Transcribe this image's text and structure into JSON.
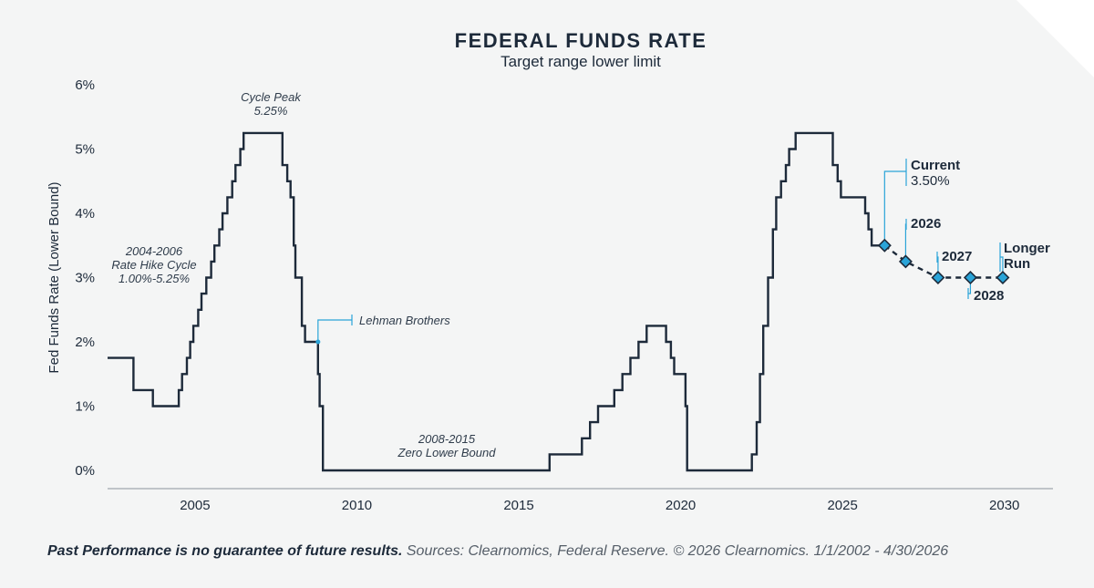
{
  "chart_data": {
    "type": "line",
    "title": "FEDERAL FUNDS RATE",
    "subtitle": "Target range lower limit",
    "ylabel": "Fed Funds Rate (Lower Bound)",
    "xlabel": "",
    "xlim": [
      2002.3,
      2031.5
    ],
    "ylim": [
      0,
      6
    ],
    "x_ticks": [
      2005,
      2010,
      2015,
      2020,
      2025,
      2030
    ],
    "y_ticks": [
      0,
      1,
      2,
      3,
      4,
      5,
      6
    ],
    "y_tick_labels": [
      "0%",
      "1%",
      "2%",
      "3%",
      "4%",
      "5%",
      "6%"
    ],
    "series": [
      {
        "style": "step",
        "color": "#1d2a3a",
        "points": [
          [
            2002.3,
            1.75
          ],
          [
            2003.1,
            1.75
          ],
          [
            2003.1,
            1.25
          ],
          [
            2003.7,
            1.25
          ],
          [
            2003.7,
            1.0
          ],
          [
            2004.5,
            1.0
          ],
          [
            2004.5,
            1.25
          ],
          [
            2004.6,
            1.25
          ],
          [
            2004.6,
            1.5
          ],
          [
            2004.75,
            1.5
          ],
          [
            2004.75,
            1.75
          ],
          [
            2004.85,
            1.75
          ],
          [
            2004.85,
            2.0
          ],
          [
            2004.95,
            2.0
          ],
          [
            2004.95,
            2.25
          ],
          [
            2005.1,
            2.25
          ],
          [
            2005.1,
            2.5
          ],
          [
            2005.2,
            2.5
          ],
          [
            2005.2,
            2.75
          ],
          [
            2005.35,
            2.75
          ],
          [
            2005.35,
            3.0
          ],
          [
            2005.5,
            3.0
          ],
          [
            2005.5,
            3.25
          ],
          [
            2005.6,
            3.25
          ],
          [
            2005.6,
            3.5
          ],
          [
            2005.75,
            3.5
          ],
          [
            2005.75,
            3.75
          ],
          [
            2005.85,
            3.75
          ],
          [
            2005.85,
            4.0
          ],
          [
            2006.0,
            4.0
          ],
          [
            2006.0,
            4.25
          ],
          [
            2006.15,
            4.25
          ],
          [
            2006.15,
            4.5
          ],
          [
            2006.25,
            4.5
          ],
          [
            2006.25,
            4.75
          ],
          [
            2006.4,
            4.75
          ],
          [
            2006.4,
            5.0
          ],
          [
            2006.5,
            5.0
          ],
          [
            2006.5,
            5.25
          ],
          [
            2007.7,
            5.25
          ],
          [
            2007.7,
            4.75
          ],
          [
            2007.85,
            4.75
          ],
          [
            2007.85,
            4.5
          ],
          [
            2007.95,
            4.5
          ],
          [
            2007.95,
            4.25
          ],
          [
            2008.05,
            4.25
          ],
          [
            2008.05,
            3.5
          ],
          [
            2008.1,
            3.5
          ],
          [
            2008.1,
            3.0
          ],
          [
            2008.3,
            3.0
          ],
          [
            2008.3,
            2.25
          ],
          [
            2008.4,
            2.25
          ],
          [
            2008.4,
            2.0
          ],
          [
            2008.8,
            2.0
          ],
          [
            2008.8,
            1.5
          ],
          [
            2008.85,
            1.5
          ],
          [
            2008.85,
            1.0
          ],
          [
            2008.95,
            1.0
          ],
          [
            2008.95,
            0.0
          ],
          [
            2015.95,
            0.0
          ],
          [
            2015.95,
            0.25
          ],
          [
            2016.95,
            0.25
          ],
          [
            2016.95,
            0.5
          ],
          [
            2017.2,
            0.5
          ],
          [
            2017.2,
            0.75
          ],
          [
            2017.45,
            0.75
          ],
          [
            2017.45,
            1.0
          ],
          [
            2017.95,
            1.0
          ],
          [
            2017.95,
            1.25
          ],
          [
            2018.2,
            1.25
          ],
          [
            2018.2,
            1.5
          ],
          [
            2018.45,
            1.5
          ],
          [
            2018.45,
            1.75
          ],
          [
            2018.7,
            1.75
          ],
          [
            2018.7,
            2.0
          ],
          [
            2018.95,
            2.0
          ],
          [
            2018.95,
            2.25
          ],
          [
            2019.55,
            2.25
          ],
          [
            2019.55,
            2.0
          ],
          [
            2019.7,
            2.0
          ],
          [
            2019.7,
            1.75
          ],
          [
            2019.8,
            1.75
          ],
          [
            2019.8,
            1.5
          ],
          [
            2020.15,
            1.5
          ],
          [
            2020.15,
            1.0
          ],
          [
            2020.2,
            1.0
          ],
          [
            2020.2,
            0.0
          ],
          [
            2022.2,
            0.0
          ],
          [
            2022.2,
            0.25
          ],
          [
            2022.35,
            0.25
          ],
          [
            2022.35,
            0.75
          ],
          [
            2022.45,
            0.75
          ],
          [
            2022.45,
            1.5
          ],
          [
            2022.55,
            1.5
          ],
          [
            2022.55,
            2.25
          ],
          [
            2022.7,
            2.25
          ],
          [
            2022.7,
            3.0
          ],
          [
            2022.85,
            3.0
          ],
          [
            2022.85,
            3.75
          ],
          [
            2022.95,
            3.75
          ],
          [
            2022.95,
            4.25
          ],
          [
            2023.1,
            4.25
          ],
          [
            2023.1,
            4.5
          ],
          [
            2023.25,
            4.5
          ],
          [
            2023.25,
            4.75
          ],
          [
            2023.35,
            4.75
          ],
          [
            2023.35,
            5.0
          ],
          [
            2023.55,
            5.0
          ],
          [
            2023.55,
            5.25
          ],
          [
            2024.7,
            5.25
          ],
          [
            2024.7,
            4.75
          ],
          [
            2024.85,
            4.75
          ],
          [
            2024.85,
            4.5
          ],
          [
            2024.95,
            4.5
          ],
          [
            2024.95,
            4.25
          ],
          [
            2025.7,
            4.25
          ],
          [
            2025.7,
            4.0
          ],
          [
            2025.8,
            4.0
          ],
          [
            2025.8,
            3.75
          ],
          [
            2025.9,
            3.75
          ],
          [
            2025.9,
            3.5
          ],
          [
            2026.3,
            3.5
          ]
        ]
      },
      {
        "style": "dashed",
        "color": "#1d2a3a",
        "points": [
          [
            2026.3,
            3.5
          ],
          [
            2026.95,
            3.25
          ],
          [
            2027.95,
            3.0
          ],
          [
            2028.95,
            3.0
          ],
          [
            2029.95,
            3.0
          ]
        ]
      }
    ],
    "markers": [
      {
        "label": "Current",
        "value_label": "3.50%",
        "x": 2026.3,
        "y": 3.5
      },
      {
        "label": "2026",
        "x": 2026.95,
        "y": 3.25
      },
      {
        "label": "2027",
        "x": 2027.95,
        "y": 3.0
      },
      {
        "label": "2028",
        "x": 2028.95,
        "y": 3.0
      },
      {
        "label": "Longer Run",
        "x": 2029.95,
        "y": 3.0
      }
    ],
    "annotations": [
      {
        "text": "Cycle Peak\n5.25%"
      },
      {
        "text": "2004-2006\nRate Hike Cycle\n1.00%-5.25%"
      },
      {
        "text": "Lehman Brothers",
        "x": 2008.8,
        "y": 2.0
      },
      {
        "text": "2008-2015\nZero Lower Bound"
      }
    ],
    "accent_color": "#2aa4d8",
    "grid": false
  },
  "footer": {
    "bold": "Past Performance is no guarantee of future results.",
    "text": " Sources: Clearnomics, Federal Reserve. © 2026 Clearnomics. 1/1/2002 - 4/30/2026"
  }
}
